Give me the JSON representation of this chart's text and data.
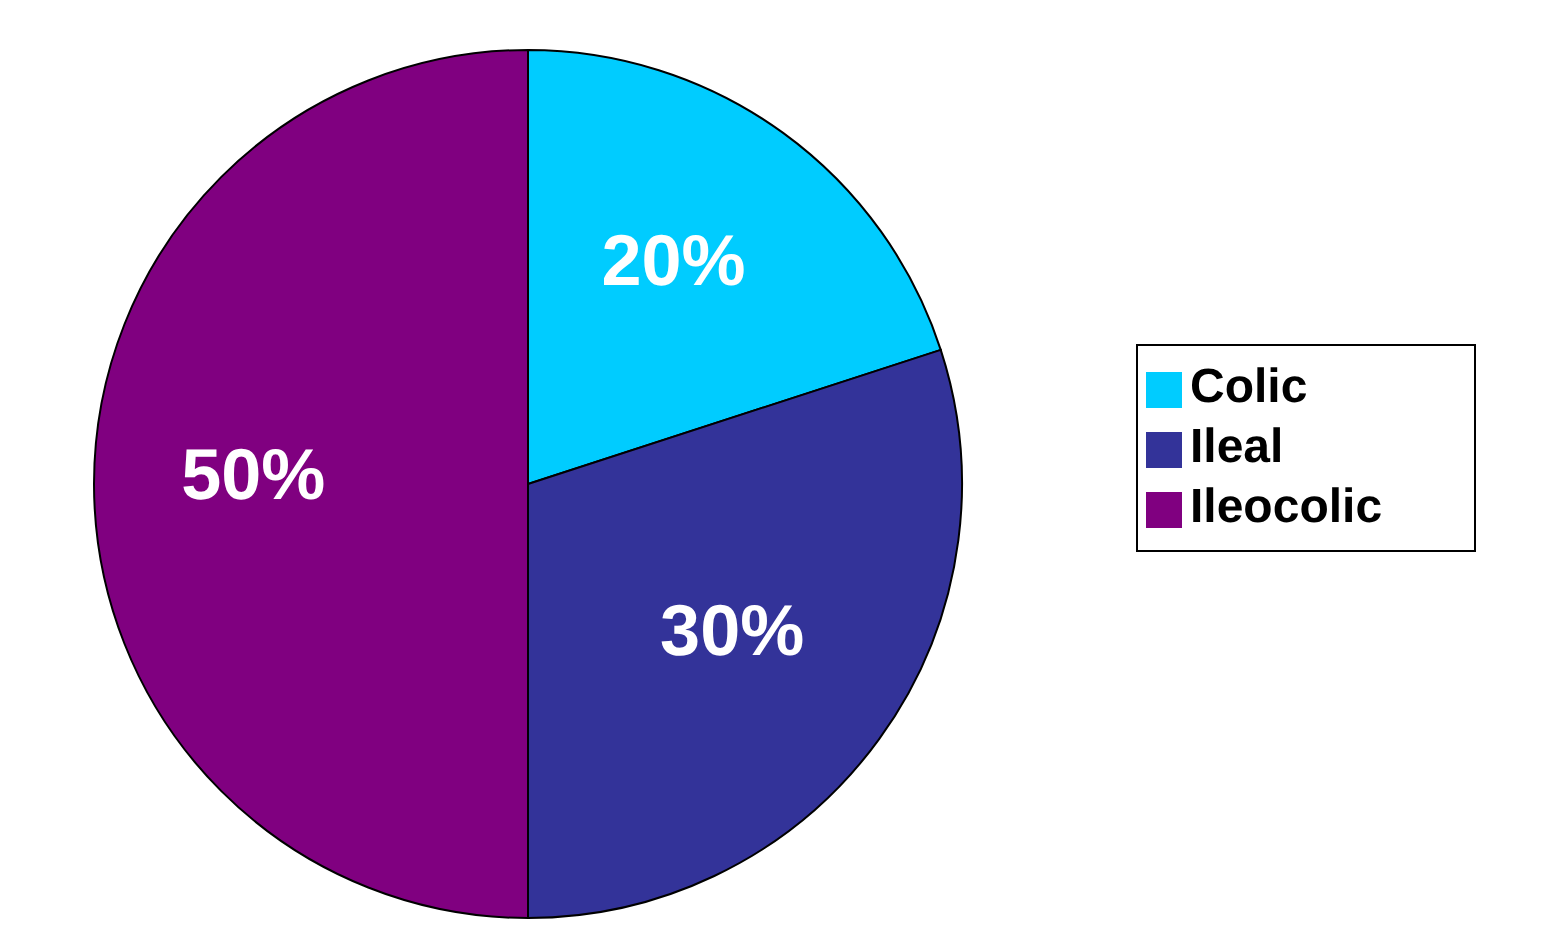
{
  "chart_data": {
    "type": "pie",
    "categories": [
      "Colic",
      "Ileal",
      "Ileocolic"
    ],
    "values": [
      20,
      30,
      50
    ],
    "colors": [
      "#00ccff",
      "#333399",
      "#800080"
    ],
    "value_labels": [
      "20%",
      "30%",
      "50%"
    ],
    "legend": "right"
  }
}
